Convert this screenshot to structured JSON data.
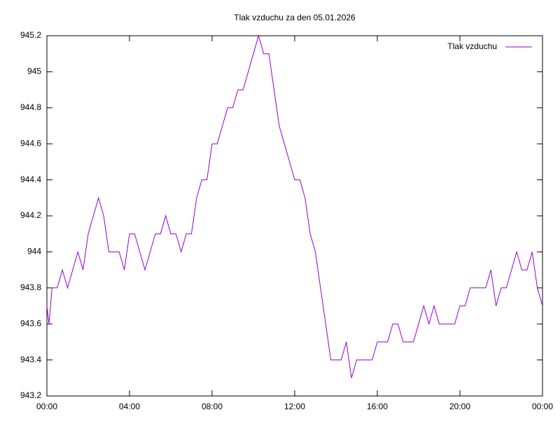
{
  "chart_data": {
    "type": "line",
    "title": "Tlak vzduchu za den 05.01.2026",
    "x": [
      0,
      0.1,
      0.25,
      0.5,
      0.75,
      1,
      1.25,
      1.5,
      1.75,
      2,
      2.25,
      2.5,
      2.75,
      3,
      3.25,
      3.5,
      3.75,
      4,
      4.25,
      4.5,
      4.75,
      5,
      5.25,
      5.5,
      5.75,
      6,
      6.25,
      6.5,
      6.75,
      7,
      7.25,
      7.5,
      7.75,
      8,
      8.25,
      8.5,
      8.75,
      9,
      9.25,
      9.5,
      9.75,
      10,
      10.25,
      10.5,
      10.75,
      11,
      11.25,
      11.5,
      11.75,
      12,
      12.25,
      12.5,
      12.75,
      13,
      13.25,
      13.5,
      13.75,
      14,
      14.25,
      14.5,
      14.75,
      15,
      15.5,
      15.75,
      16,
      16.5,
      16.75,
      17,
      17.25,
      17.5,
      17.75,
      18,
      18.25,
      18.5,
      18.75,
      19,
      19.25,
      19.5,
      19.75,
      20,
      20.25,
      20.5,
      20.75,
      21,
      21.25,
      21.5,
      21.75,
      22,
      22.25,
      22.5,
      22.75,
      23,
      23.25,
      23.5,
      23.75,
      24
    ],
    "series": [
      {
        "name": "Tlak vzduchu",
        "color": "#9400d3",
        "values": [
          943.7,
          943.6,
          943.8,
          943.8,
          943.9,
          943.8,
          943.9,
          944.0,
          943.9,
          944.1,
          944.2,
          944.3,
          944.2,
          944.0,
          944.0,
          944.0,
          943.9,
          944.1,
          944.1,
          944.0,
          943.9,
          944.0,
          944.1,
          944.1,
          944.2,
          944.1,
          944.1,
          944.0,
          944.1,
          944.1,
          944.3,
          944.4,
          944.4,
          944.6,
          944.6,
          944.7,
          944.8,
          944.8,
          944.9,
          944.9,
          945.0,
          945.1,
          945.2,
          945.1,
          945.1,
          944.9,
          944.7,
          944.6,
          944.5,
          944.4,
          944.4,
          944.3,
          944.1,
          944.0,
          943.8,
          943.6,
          943.4,
          943.4,
          943.4,
          943.5,
          943.3,
          943.4,
          943.4,
          943.4,
          943.5,
          943.5,
          943.6,
          943.6,
          943.5,
          943.5,
          943.5,
          943.6,
          943.7,
          943.6,
          943.7,
          943.6,
          943.6,
          943.6,
          943.6,
          943.7,
          943.7,
          943.8,
          943.8,
          943.8,
          943.8,
          943.9,
          943.7,
          943.8,
          943.8,
          943.9,
          944.0,
          943.9,
          943.9,
          944.0,
          943.8,
          943.7
        ]
      }
    ],
    "xlim": [
      0,
      24
    ],
    "xticks": [
      {
        "value": 0,
        "label": "00:00"
      },
      {
        "value": 4,
        "label": "04:00"
      },
      {
        "value": 8,
        "label": "08:00"
      },
      {
        "value": 12,
        "label": "12:00"
      },
      {
        "value": 16,
        "label": "16:00"
      },
      {
        "value": 20,
        "label": "20:00"
      },
      {
        "value": 24,
        "label": "00:00"
      }
    ],
    "ylim": [
      943.2,
      945.2
    ],
    "yticks": [
      943.2,
      943.4,
      943.6,
      943.8,
      944,
      944.2,
      944.4,
      944.6,
      944.8,
      945,
      945.2
    ],
    "legend": "top-right"
  }
}
